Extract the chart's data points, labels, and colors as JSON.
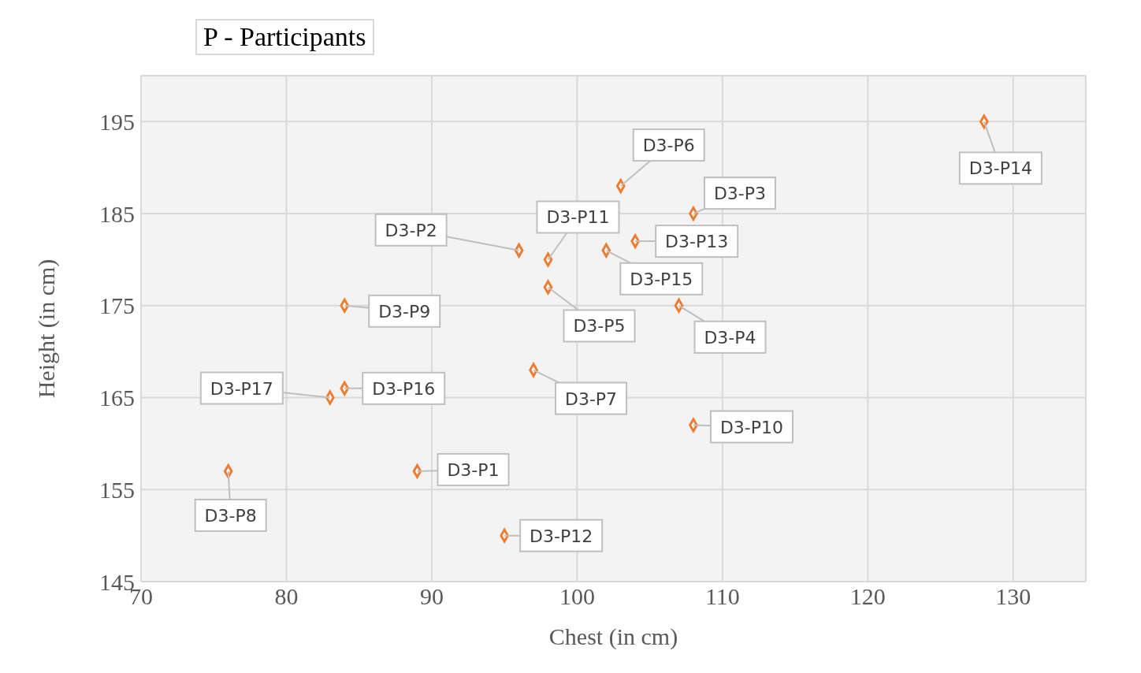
{
  "chart_data": {
    "type": "scatter",
    "title": "P - Participants",
    "xlabel": "Chest (in cm)",
    "ylabel": "Height (in cm)",
    "x": [
      89,
      96,
      108,
      107,
      98,
      103,
      97,
      76,
      84,
      108,
      98,
      95,
      104,
      128,
      102,
      84,
      83
    ],
    "series": [
      {
        "color": "#ed7d31",
        "values": [
          157,
          181,
          185,
          175,
          177,
          188,
          168,
          157,
          175,
          162,
          180,
          150,
          182,
          195,
          181,
          166,
          165
        ]
      }
    ],
    "xlim": [
      70,
      135
    ],
    "xticks": [
      70,
      80,
      90,
      100,
      110,
      120,
      130
    ],
    "ylim": [
      145,
      200
    ],
    "yticks": [
      145,
      155,
      165,
      175,
      185,
      195
    ],
    "grid": true,
    "legend": false,
    "marker": "diamond",
    "annotations": [
      {
        "text": "D3-P1",
        "x": 89,
        "y": 157
      },
      {
        "text": "D3-P2",
        "x": 96,
        "y": 181
      },
      {
        "text": "D3-P3",
        "x": 108,
        "y": 185
      },
      {
        "text": "D3-P4",
        "x": 107,
        "y": 175
      },
      {
        "text": "D3-P5",
        "x": 98,
        "y": 177
      },
      {
        "text": "D3-P6",
        "x": 103,
        "y": 188
      },
      {
        "text": "D3-P7",
        "x": 97,
        "y": 168
      },
      {
        "text": "D3-P8",
        "x": 76,
        "y": 157
      },
      {
        "text": "D3-P9",
        "x": 84,
        "y": 175
      },
      {
        "text": "D3-P10",
        "x": 108,
        "y": 162
      },
      {
        "text": "D3-P11",
        "x": 98,
        "y": 180
      },
      {
        "text": "D3-P12",
        "x": 95,
        "y": 150
      },
      {
        "text": "D3-P13",
        "x": 104,
        "y": 182
      },
      {
        "text": "D3-P14",
        "x": 128,
        "y": 195
      },
      {
        "text": "D3-P15",
        "x": 102,
        "y": 181
      },
      {
        "text": "D3-P16",
        "x": 84,
        "y": 166
      },
      {
        "text": "D3-P17",
        "x": 83,
        "y": 165
      }
    ]
  }
}
